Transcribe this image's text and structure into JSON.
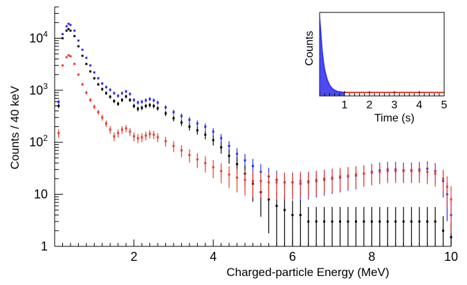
{
  "chart_data": [
    {
      "type": "scatter",
      "title": "",
      "xlabel": "Charged-particle Energy (MeV)",
      "ylabel": "Counts / 40 keV",
      "xlim": [
        0,
        10
      ],
      "ylim": [
        1,
        40000
      ],
      "yscale": "log",
      "grid": false,
      "legend": "none",
      "x_ticks": [
        "2",
        "4",
        "6",
        "8",
        "10"
      ],
      "y_ticks": [
        {
          "value": 1,
          "base": "1",
          "exp": ""
        },
        {
          "value": 10,
          "base": "10",
          "exp": ""
        },
        {
          "value": 100,
          "base": "10",
          "exp": "2"
        },
        {
          "value": 1000,
          "base": "10",
          "exp": "3"
        },
        {
          "value": 10000,
          "base": "10",
          "exp": "4"
        }
      ],
      "series": [
        {
          "color": "#2b2bee",
          "points": [
            [
              0.1,
              600
            ],
            [
              0.2,
              12000
            ],
            [
              0.3,
              17000
            ],
            [
              0.35,
              19000
            ],
            [
              0.4,
              18000
            ],
            [
              0.5,
              14000
            ],
            [
              0.6,
              9000
            ],
            [
              0.7,
              6000
            ],
            [
              0.8,
              4200
            ],
            [
              0.9,
              3000
            ],
            [
              1.0,
              2200
            ],
            [
              1.1,
              1700
            ],
            [
              1.2,
              1350
            ],
            [
              1.3,
              1150
            ],
            [
              1.4,
              1020
            ],
            [
              1.5,
              880
            ],
            [
              1.6,
              780
            ],
            [
              1.7,
              880
            ],
            [
              1.8,
              950
            ],
            [
              1.9,
              850
            ],
            [
              2.0,
              650
            ],
            [
              2.1,
              580
            ],
            [
              2.2,
              600
            ],
            [
              2.3,
              640
            ],
            [
              2.4,
              680
            ],
            [
              2.5,
              640
            ],
            [
              2.6,
              580
            ],
            [
              2.8,
              470
            ],
            [
              3.0,
              380
            ],
            [
              3.2,
              320
            ],
            [
              3.4,
              270
            ],
            [
              3.6,
              230
            ],
            [
              3.8,
              200
            ],
            [
              4.0,
              160
            ],
            [
              4.2,
              120
            ],
            [
              4.4,
              85
            ],
            [
              4.6,
              60
            ],
            [
              4.8,
              45
            ],
            [
              5.0,
              35
            ],
            [
              5.2,
              27
            ],
            [
              5.4,
              22
            ],
            [
              5.6,
              19
            ],
            [
              5.8,
              17
            ],
            [
              6.0,
              17
            ],
            [
              6.2,
              16
            ],
            [
              6.4,
              17
            ],
            [
              6.6,
              18
            ],
            [
              6.8,
              19
            ],
            [
              7.0,
              20
            ],
            [
              7.2,
              21
            ],
            [
              7.4,
              22
            ],
            [
              7.6,
              23
            ],
            [
              7.8,
              25
            ],
            [
              8.0,
              27
            ],
            [
              8.2,
              29
            ],
            [
              8.4,
              30
            ],
            [
              8.6,
              30
            ],
            [
              8.8,
              29
            ],
            [
              9.0,
              29
            ],
            [
              9.2,
              30
            ],
            [
              9.4,
              31
            ],
            [
              9.6,
              28
            ],
            [
              9.8,
              18
            ],
            [
              9.9,
              10
            ],
            [
              10.0,
              4
            ]
          ]
        },
        {
          "color": "#000000",
          "points": [
            [
              0.1,
              500
            ],
            [
              0.2,
              10000
            ],
            [
              0.3,
              14000
            ],
            [
              0.35,
              15000
            ],
            [
              0.4,
              14000
            ],
            [
              0.5,
              11000
            ],
            [
              0.6,
              7000
            ],
            [
              0.7,
              4600
            ],
            [
              0.8,
              3200
            ],
            [
              0.9,
              2300
            ],
            [
              1.0,
              1700
            ],
            [
              1.1,
              1300
            ],
            [
              1.2,
              1050
            ],
            [
              1.3,
              880
            ],
            [
              1.4,
              750
            ],
            [
              1.5,
              620
            ],
            [
              1.6,
              550
            ],
            [
              1.7,
              650
            ],
            [
              1.8,
              760
            ],
            [
              1.9,
              650
            ],
            [
              2.0,
              500
            ],
            [
              2.1,
              440
            ],
            [
              2.2,
              460
            ],
            [
              2.3,
              500
            ],
            [
              2.4,
              520
            ],
            [
              2.5,
              500
            ],
            [
              2.6,
              450
            ],
            [
              2.8,
              360
            ],
            [
              3.0,
              290
            ],
            [
              3.2,
              240
            ],
            [
              3.4,
              200
            ],
            [
              3.6,
              170
            ],
            [
              3.8,
              140
            ],
            [
              4.0,
              110
            ],
            [
              4.2,
              80
            ],
            [
              4.4,
              55
            ],
            [
              4.6,
              38
            ],
            [
              4.8,
              25
            ],
            [
              5.0,
              16
            ],
            [
              5.2,
              11
            ],
            [
              5.4,
              8
            ],
            [
              5.6,
              6
            ],
            [
              5.8,
              5
            ],
            [
              6.0,
              4
            ],
            [
              6.2,
              4
            ],
            [
              6.4,
              3
            ],
            [
              6.6,
              3
            ],
            [
              6.8,
              3
            ],
            [
              7.0,
              3
            ],
            [
              7.2,
              3
            ],
            [
              7.4,
              3
            ],
            [
              7.6,
              3
            ],
            [
              7.8,
              3
            ],
            [
              8.0,
              3
            ],
            [
              8.2,
              3
            ],
            [
              8.4,
              3
            ],
            [
              8.6,
              3
            ],
            [
              8.8,
              3
            ],
            [
              9.0,
              3
            ],
            [
              9.2,
              3
            ],
            [
              9.4,
              3
            ],
            [
              9.6,
              3
            ],
            [
              9.8,
              2
            ],
            [
              10.0,
              1.5
            ]
          ]
        },
        {
          "color": "#e8392a",
          "points": [
            [
              0.1,
              150
            ],
            [
              0.2,
              3000
            ],
            [
              0.3,
              4300
            ],
            [
              0.35,
              4700
            ],
            [
              0.4,
              4500
            ],
            [
              0.5,
              3200
            ],
            [
              0.6,
              2000
            ],
            [
              0.7,
              1300
            ],
            [
              0.8,
              900
            ],
            [
              0.9,
              650
            ],
            [
              1.0,
              480
            ],
            [
              1.1,
              380
            ],
            [
              1.2,
              300
            ],
            [
              1.3,
              230
            ],
            [
              1.4,
              175
            ],
            [
              1.5,
              130
            ],
            [
              1.6,
              150
            ],
            [
              1.7,
              175
            ],
            [
              1.8,
              185
            ],
            [
              1.9,
              160
            ],
            [
              2.0,
              130
            ],
            [
              2.1,
              120
            ],
            [
              2.2,
              125
            ],
            [
              2.3,
              135
            ],
            [
              2.4,
              145
            ],
            [
              2.5,
              140
            ],
            [
              2.6,
              125
            ],
            [
              2.8,
              105
            ],
            [
              3.0,
              85
            ],
            [
              3.2,
              70
            ],
            [
              3.4,
              57
            ],
            [
              3.6,
              47
            ],
            [
              3.8,
              40
            ],
            [
              4.0,
              33
            ],
            [
              4.2,
              28
            ],
            [
              4.4,
              24
            ],
            [
              4.6,
              21
            ],
            [
              4.8,
              19
            ],
            [
              5.0,
              18
            ],
            [
              5.2,
              18
            ],
            [
              5.4,
              17
            ],
            [
              5.6,
              17
            ],
            [
              5.8,
              17
            ],
            [
              6.0,
              17
            ],
            [
              6.2,
              18
            ],
            [
              6.4,
              18
            ],
            [
              6.6,
              19
            ],
            [
              6.8,
              20
            ],
            [
              7.0,
              21
            ],
            [
              7.2,
              22
            ],
            [
              7.4,
              23
            ],
            [
              7.6,
              24
            ],
            [
              7.8,
              25
            ],
            [
              8.0,
              26
            ],
            [
              8.2,
              27
            ],
            [
              8.4,
              28
            ],
            [
              8.6,
              28
            ],
            [
              8.8,
              28
            ],
            [
              9.0,
              28
            ],
            [
              9.2,
              28
            ],
            [
              9.4,
              27
            ],
            [
              9.6,
              25
            ],
            [
              9.8,
              20
            ],
            [
              9.9,
              14
            ],
            [
              10.0,
              8
            ]
          ]
        }
      ]
    },
    {
      "type": "area",
      "title": "",
      "xlabel": "Time (s)",
      "ylabel": "Counts",
      "xlim": [
        0,
        5
      ],
      "x_ticks": [
        "1",
        "2",
        "3",
        "4",
        "5"
      ],
      "grid": false,
      "legend": "none",
      "series": [
        {
          "color": "#2b2bee",
          "x": [
            0,
            0.05,
            0.1,
            0.15,
            0.2,
            0.3,
            0.4,
            0.5,
            0.6,
            0.7,
            0.8,
            0.9,
            1.0
          ],
          "values": [
            0.95,
            0.75,
            0.55,
            0.42,
            0.32,
            0.2,
            0.13,
            0.09,
            0.07,
            0.055,
            0.05,
            0.045,
            0.042
          ]
        },
        {
          "color": "#e8392a",
          "x": [
            1.0,
            5.0
          ],
          "values": [
            0.042,
            0.042
          ]
        }
      ]
    }
  ]
}
